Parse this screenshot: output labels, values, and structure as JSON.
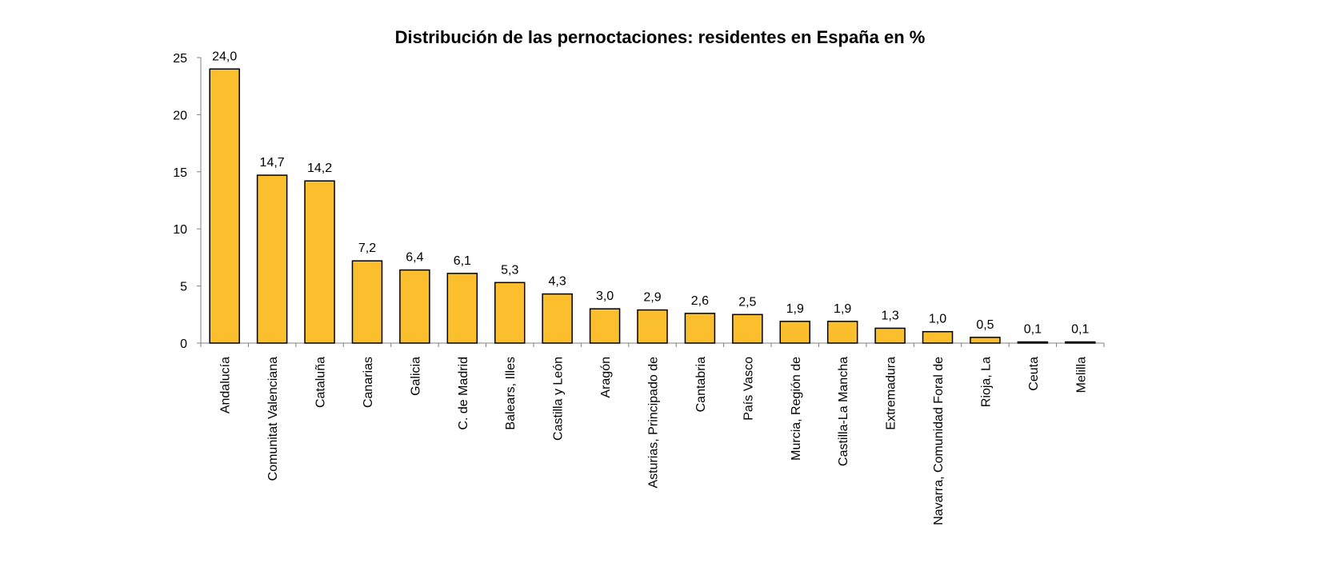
{
  "chart_data": {
    "type": "bar",
    "title": "Distribución de las pernoctaciones: residentes en España en %",
    "xlabel": "",
    "ylabel": "",
    "ylim": [
      0,
      25
    ],
    "yticks": [
      0,
      5,
      10,
      15,
      20,
      25
    ],
    "grid": false,
    "legend": "none",
    "colors": {
      "bar_fill": "#FBBF2D",
      "bar_stroke": "#000000",
      "axis": "#808080"
    },
    "categories": [
      "Andalucía",
      "Comunitat Valenciana",
      "Cataluña",
      "Canarias",
      "Galicia",
      "C. de Madrid",
      "Balears, Illes",
      "Castilla y León",
      "Aragón",
      "Asturias, Principado de",
      "Cantabria",
      "País Vasco",
      "Murcia, Región de",
      "Castilla-La Mancha",
      "Extremadura",
      "Navarra, Comunidad Foral de",
      "Rioja, La",
      "Ceuta",
      "Melilla"
    ],
    "values": [
      24.0,
      14.7,
      14.2,
      7.2,
      6.4,
      6.1,
      5.3,
      4.3,
      3.0,
      2.9,
      2.6,
      2.5,
      1.9,
      1.9,
      1.3,
      1.0,
      0.5,
      0.1,
      0.1
    ],
    "data_labels": [
      "24,0",
      "14,7",
      "14,2",
      "7,2",
      "6,4",
      "6,1",
      "5,3",
      "4,3",
      "3,0",
      "2,9",
      "2,6",
      "2,5",
      "1,9",
      "1,9",
      "1,3",
      "1,0",
      "0,5",
      "0,1",
      "0,1"
    ]
  }
}
